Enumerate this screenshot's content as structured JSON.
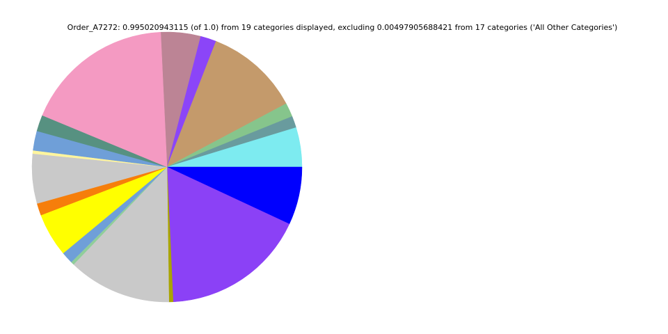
{
  "chart_data": {
    "type": "pie",
    "title": "Order_A7272: 0.995020943115 (of 1.0) from 19 categories displayed, excluding 0.00497905688421 from 17 categories ('All Other Categories')",
    "order_id": "Order_A7272",
    "total_displayed": "0.995020943115",
    "total_of": "1.0",
    "categories_displayed": "19",
    "excluded_value": "0.00497905688421",
    "categories_excluded": "17",
    "excluded_label": "All Other Categories",
    "legend": "none",
    "start_angle_deg_clockwise_from_top": -2.7,
    "slices": [
      {
        "color": "#BC8495",
        "angle_deg": 17.2,
        "fraction": 0.0475
      },
      {
        "color": "#8B45F8",
        "angle_deg": 6.8,
        "fraction": 0.0188
      },
      {
        "color": "#C49A6B",
        "angle_deg": 40.7,
        "fraction": 0.1125
      },
      {
        "color": "#86C58C",
        "angle_deg": 6.0,
        "fraction": 0.0166
      },
      {
        "color": "#699B9E",
        "angle_deg": 5.0,
        "fraction": 0.0138
      },
      {
        "color": "#7DEBF0",
        "angle_deg": 17.0,
        "fraction": 0.047
      },
      {
        "color": "#0000FE",
        "angle_deg": 25.0,
        "fraction": 0.0691
      },
      {
        "color": "#8B41F6",
        "angle_deg": 62.4,
        "fraction": 0.1725
      },
      {
        "color": "#A9A400",
        "angle_deg": 1.8,
        "fraction": 0.005
      },
      {
        "color": "#C9C9C9",
        "angle_deg": 44.6,
        "fraction": 0.1233
      },
      {
        "color": "#90CE9B",
        "angle_deg": 1.4,
        "fraction": 0.0039
      },
      {
        "color": "#6F9FD8",
        "angle_deg": 5.1,
        "fraction": 0.0141
      },
      {
        "color": "#FFFF00",
        "angle_deg": 18.8,
        "fraction": 0.052
      },
      {
        "color": "#F67E0B",
        "angle_deg": 5.2,
        "fraction": 0.0144
      },
      {
        "color": "#C9C9C9",
        "angle_deg": 21.4,
        "fraction": 0.0591
      },
      {
        "color": "#FFF59E",
        "angle_deg": 1.4,
        "fraction": 0.0039
      },
      {
        "color": "#6F9FD8",
        "angle_deg": 8.4,
        "fraction": 0.0232
      },
      {
        "color": "#579181",
        "angle_deg": 7.0,
        "fraction": 0.0193
      },
      {
        "color": "#F49AC2",
        "angle_deg": 64.8,
        "fraction": 0.1791
      }
    ]
  }
}
